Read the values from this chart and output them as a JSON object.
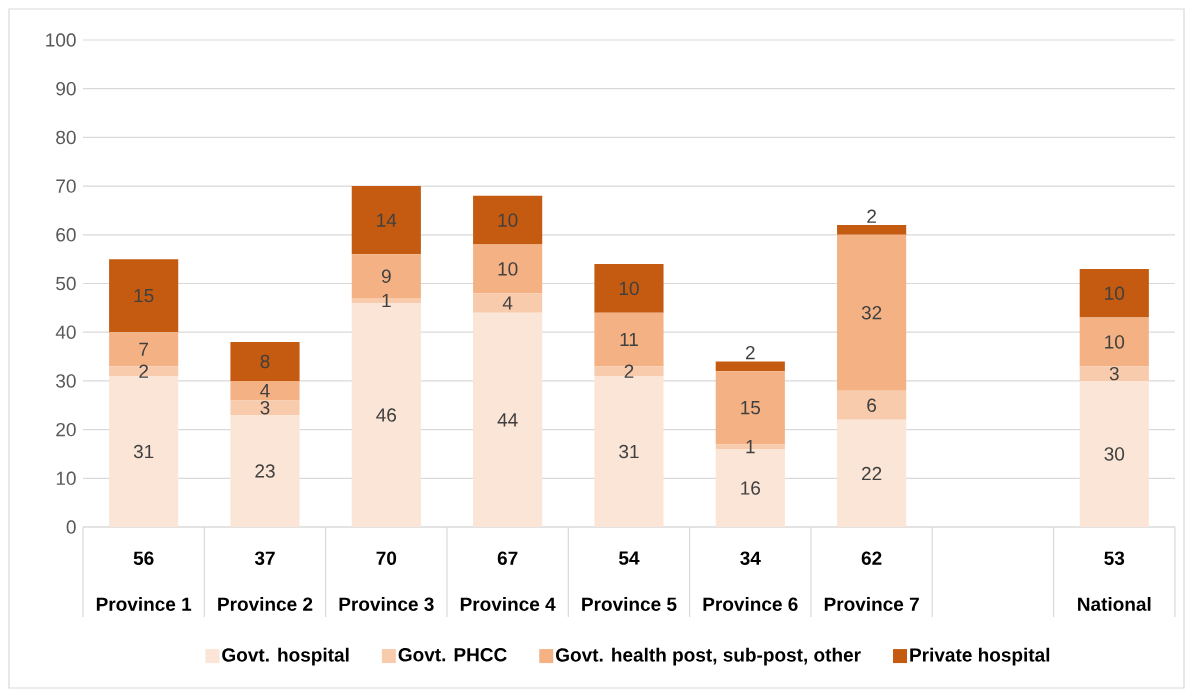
{
  "chart_data": {
    "type": "bar",
    "stacked": true,
    "categories": [
      "Province 1",
      "Province 2",
      "Province 3",
      "Province 4",
      "Province 5",
      "Province 6",
      "Province 7",
      null,
      "National"
    ],
    "series": [
      {
        "name": "Govt. hospital",
        "color": "#fbe5d6",
        "values": [
          31,
          23,
          46,
          44,
          31,
          16,
          22,
          null,
          30
        ]
      },
      {
        "name": "Govt. PHCC",
        "color": "#f8cbad",
        "values": [
          2,
          3,
          1,
          4,
          2,
          1,
          6,
          null,
          3
        ]
      },
      {
        "name": "Govt. health post, sub-post, other",
        "color": "#f4b183",
        "values": [
          7,
          4,
          9,
          10,
          11,
          15,
          32,
          null,
          10
        ]
      },
      {
        "name": "Private hospital",
        "color": "#c55a11",
        "values": [
          15,
          8,
          14,
          10,
          10,
          2,
          2,
          null,
          10
        ]
      }
    ],
    "totals": [
      "56",
      "37",
      "70",
      "67",
      "54",
      "34",
      "62",
      null,
      "53"
    ],
    "ylim": [
      0,
      100
    ],
    "yticks": [
      0,
      10,
      20,
      30,
      40,
      50,
      60,
      70,
      80,
      90,
      100
    ],
    "grid": "y",
    "legend": "bottom",
    "data_labels": true
  }
}
